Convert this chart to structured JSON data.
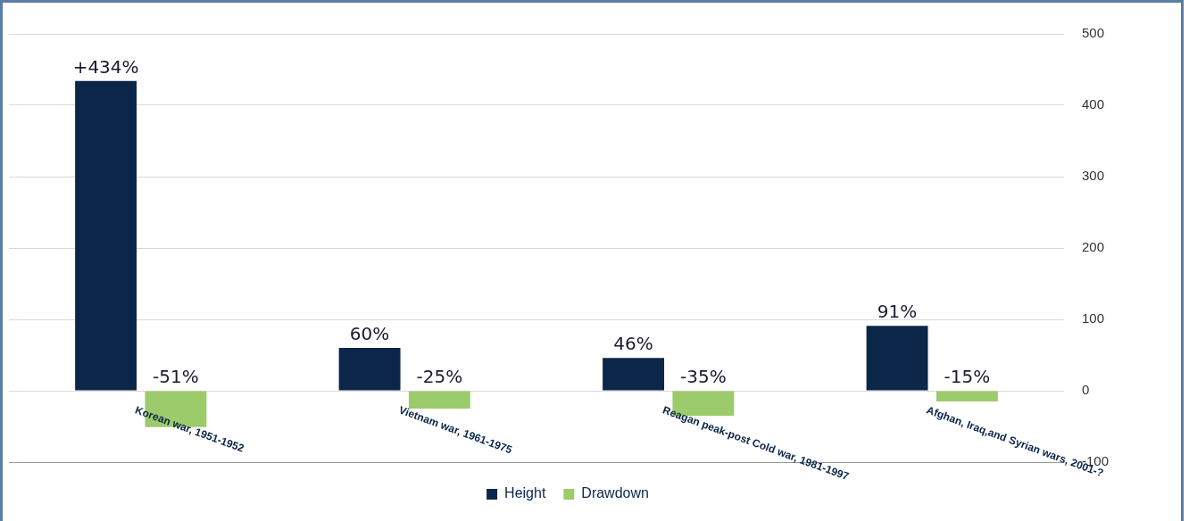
{
  "chart_data": {
    "type": "bar",
    "categories": [
      "Korean war, 1951-1952",
      "Vietnam war, 1961-1975",
      "Reagan peak-post Cold war, 1981-1997",
      "Afghan, Iraq,and Syrian wars, 2001-?"
    ],
    "series": [
      {
        "name": "Height",
        "color": "#0b2648",
        "values": [
          434,
          60,
          46,
          91
        ],
        "value_labels": [
          "+434%",
          "60%",
          "46%",
          "91%"
        ]
      },
      {
        "name": "Drawdown",
        "color": "#9ccb6b",
        "values": [
          -51,
          -25,
          -35,
          -15
        ],
        "value_labels": [
          "-51%",
          "-25%",
          "-35%",
          "-15%"
        ]
      }
    ],
    "ylim": [
      -100,
      500
    ],
    "yticks": [
      -100,
      0,
      100,
      200,
      300,
      400,
      500
    ],
    "grid": "y",
    "legend": "bottom"
  }
}
